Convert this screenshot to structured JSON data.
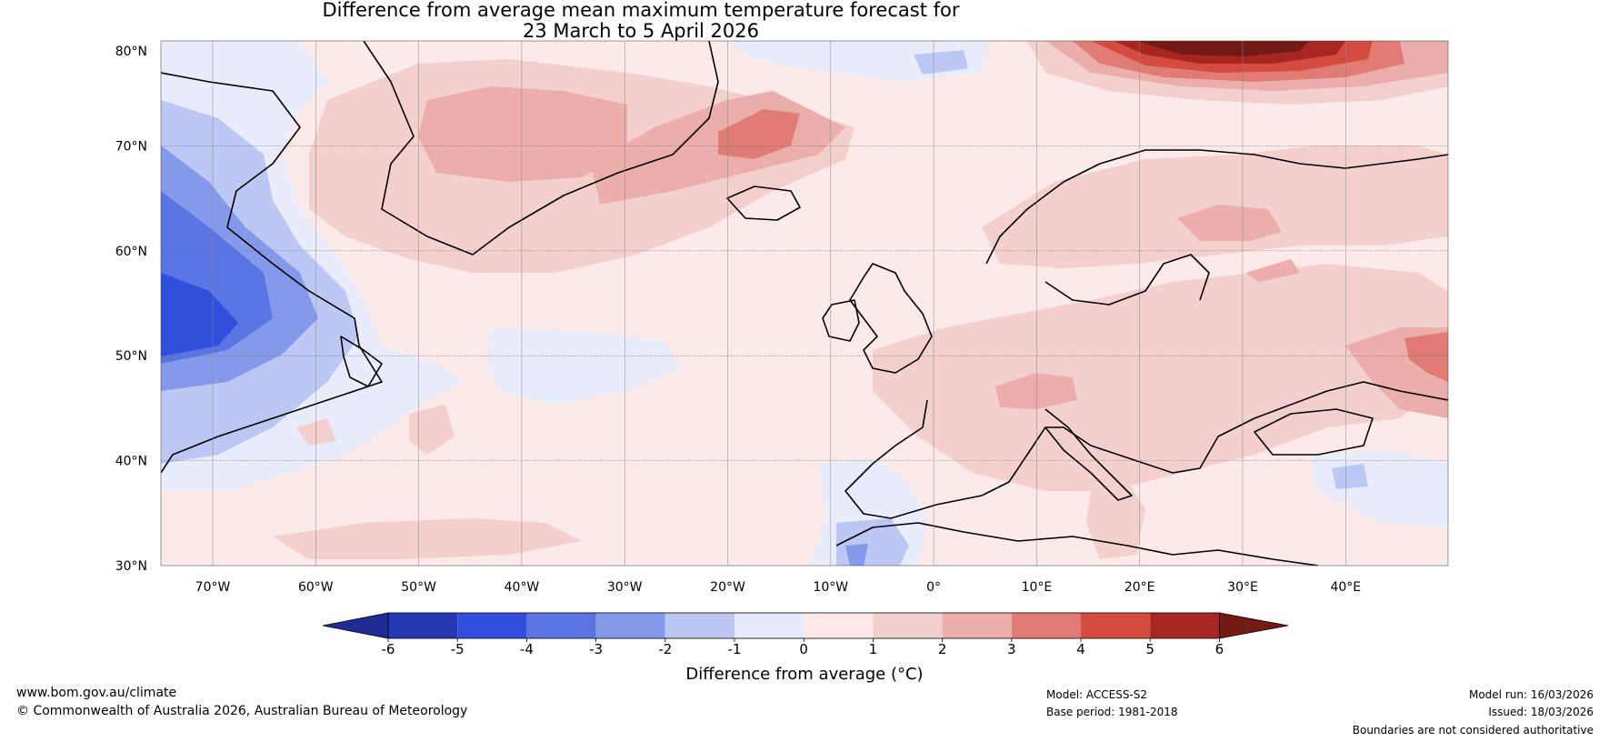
{
  "title": {
    "line1": "Difference from average mean maximum temperature forecast for",
    "line2": "23 March to 5 April 2026"
  },
  "map": {
    "lat_labels": [
      "80°N",
      "70°N",
      "60°N",
      "50°N",
      "40°N",
      "30°N"
    ],
    "lon_labels": [
      "70°W",
      "60°W",
      "50°W",
      "40°W",
      "30°W",
      "20°W",
      "10°W",
      "0°",
      "10°E",
      "20°E",
      "30°E",
      "40°E"
    ]
  },
  "colorbar": {
    "label": "Difference from average (°C)",
    "ticks": [
      "-6",
      "-5",
      "-4",
      "-3",
      "-2",
      "-1",
      "0",
      "1",
      "2",
      "3",
      "4",
      "5",
      "6"
    ],
    "colors": [
      "#1d2b93",
      "#2538b3",
      "#3050dc",
      "#5b74e3",
      "#8599ea",
      "#bcc7f3",
      "#e6eafb",
      "#fce9e8",
      "#f3cfcd",
      "#ebaeab",
      "#e07c74",
      "#d44c40",
      "#a82620",
      "#741a14"
    ],
    "water_color": "#fbeae8"
  },
  "footer": {
    "website": "www.bom.gov.au/climate",
    "copyright": "© Commonwealth of Australia 2026, Australian Bureau of Meteorology",
    "model": "Model: ACCESS-S2",
    "base_period": "Base period: 1981-2018",
    "model_run": "Model run: 16/03/2026",
    "issued": "Issued: 18/03/2026",
    "disclaimer": "Boundaries are not considered authoritative"
  }
}
